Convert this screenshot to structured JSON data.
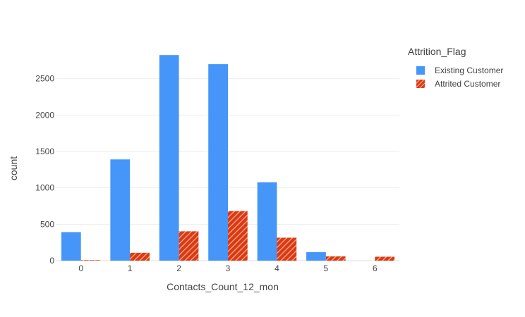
{
  "chart_data": {
    "type": "bar",
    "title": "",
    "xlabel": "Contacts_Count_12_mon",
    "ylabel": "count",
    "categories": [
      "0",
      "1",
      "2",
      "3",
      "4",
      "5",
      "6"
    ],
    "ylim": [
      0,
      3000
    ],
    "yticks": [
      0,
      500,
      1000,
      1500,
      2000,
      2500
    ],
    "grid": true,
    "legend": {
      "title": "Attrition_Flag",
      "placement": "top-right"
    },
    "series": [
      {
        "name": "Existing Customer",
        "color": "#4596f8",
        "pattern": "solid",
        "values": [
          392,
          1391,
          2824,
          2699,
          1077,
          117,
          0
        ]
      },
      {
        "name": "Attrited Customer",
        "color": "#dc3912",
        "pattern": "diagonal-stripes",
        "values": [
          7,
          108,
          403,
          681,
          315,
          59,
          54
        ]
      }
    ]
  }
}
